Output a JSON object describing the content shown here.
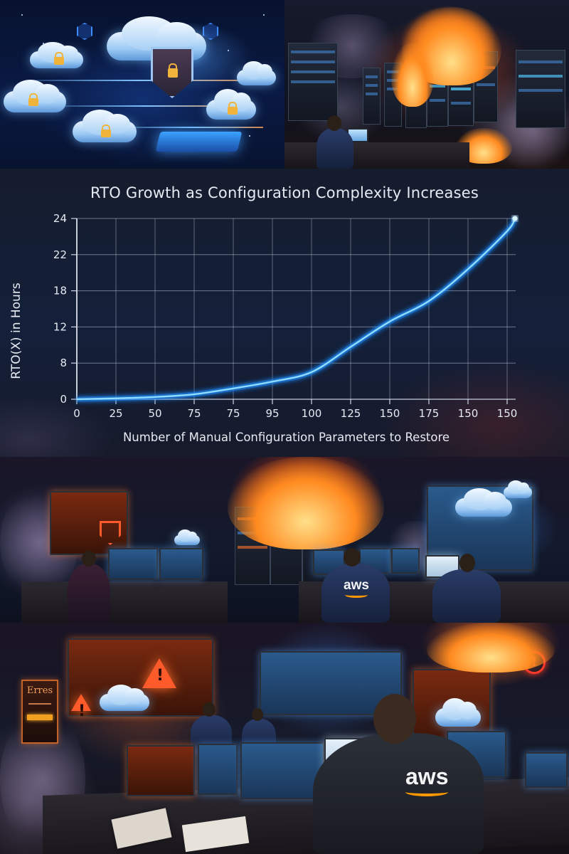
{
  "panels": {
    "top_left": {
      "caption": "",
      "icons": [
        "cloud-icon",
        "lock-icon",
        "shield-lock-icon"
      ]
    },
    "top_right": {
      "caption": ""
    },
    "middle": {
      "aws_label": "aws"
    },
    "bottom": {
      "aws_label": "aws",
      "error_panel_text": "Erres"
    }
  },
  "colors": {
    "curve": "#3ab4ff",
    "curve_glow": "#1e8cff",
    "grid": "#b8c0d0",
    "text": "#e6eaf2",
    "chart_bg": "#151c2d"
  },
  "chart_data": {
    "type": "line",
    "title": "RTO Growth as Configuration Complexity Increases",
    "xlabel": "Number of Manual Configuration Parameters to Restore",
    "ylabel": "RTO(X) in Hours",
    "x_tick_labels": [
      "0",
      "25",
      "50",
      "75",
      "75",
      "95",
      "100",
      "125",
      "150",
      "175",
      "150",
      "150"
    ],
    "y_tick_labels": [
      "0",
      "8",
      "12",
      "18",
      "22",
      "24"
    ],
    "ylim": [
      0,
      24
    ],
    "grid": true,
    "legend": null,
    "series": [
      {
        "name": "RTO(X)",
        "x_index": [
          0,
          1,
          2,
          3,
          4,
          5,
          6,
          7,
          8,
          9,
          10,
          11,
          11.2
        ],
        "values": [
          0,
          0.2,
          0.5,
          1.1,
          2.4,
          3.9,
          6.0,
          9.8,
          12.9,
          16.3,
          20.4,
          23.3,
          24
        ]
      }
    ],
    "endpoint_marker": {
      "x_index": 11.2,
      "y": 24
    }
  }
}
